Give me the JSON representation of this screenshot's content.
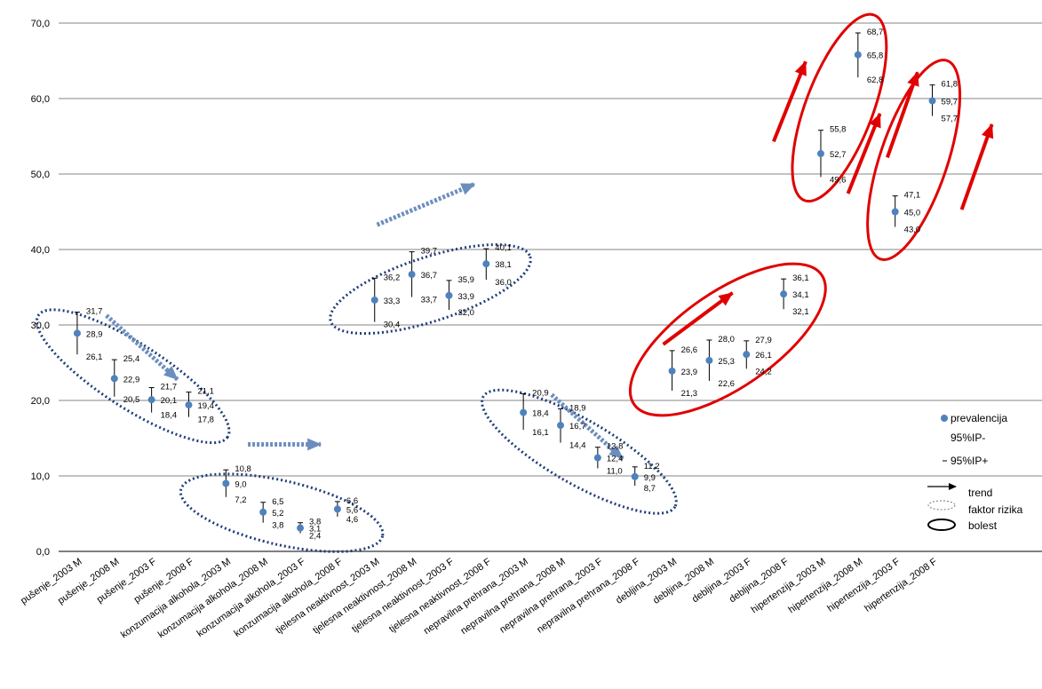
{
  "chart_data": {
    "type": "scatter",
    "title": "",
    "xlabel": "",
    "ylabel": "",
    "ylim": [
      0,
      70
    ],
    "yticks": [
      "0,0",
      "10,0",
      "20,0",
      "30,0",
      "40,0",
      "50,0",
      "60,0",
      "70,0"
    ],
    "grid": "horizontal",
    "legend_position": "right",
    "categories": [
      "pušenje_2003 M",
      "pušenje_2008 M",
      "pušenje_2003 F",
      "pušenje_2008 F",
      "konzumacija alkohola_2003 M",
      "konzumacija alkohola_2008 M",
      "konzumacija alkohola_2003 F",
      "konzumacija alkohola_2008 F",
      "tjelesna neaktivnost_2003 M",
      "tjelesna neaktivnost_2008 M",
      "tjelesna neaktivnost_2003 F",
      "tjelesna neaktivnost_2008 F",
      "nepravilna prehrana_2003 M",
      "nepravilna prehrana_2008 M",
      "nepravilna prehrana_2003 F",
      "nepravilna prehrana_2008 F",
      "debljina_2003 M",
      "debljina_2008 M",
      "debljina_2003 F",
      "debljina_2008 F",
      "hipertenzija_2003 M",
      "hipertenzija_2008 M",
      "hipertenzija_2003 F",
      "hipertenzija_2008 F"
    ],
    "series": [
      {
        "name": "prevalencija",
        "values": [
          28.9,
          22.9,
          20.1,
          19.4,
          9.0,
          5.2,
          3.1,
          5.6,
          33.3,
          36.7,
          33.9,
          38.1,
          18.4,
          16.7,
          12.4,
          9.9,
          23.9,
          25.3,
          26.1,
          34.1,
          52.7,
          65.8,
          45.0,
          59.7
        ],
        "labels": [
          "28,9",
          "22,9",
          "20,1",
          "19,4",
          "9,0",
          "5,2",
          "3,1",
          "5,6",
          "33,3",
          "36,7",
          "33,9",
          "38,1",
          "18,4",
          "16,7",
          "12,4",
          "9,9",
          "23,9",
          "25,3",
          "26,1",
          "34,1",
          "52,7",
          "65,8",
          "45,0",
          "59,7"
        ]
      },
      {
        "name": "95%IP-",
        "values": [
          26.1,
          20.5,
          18.4,
          17.8,
          7.2,
          3.8,
          2.4,
          4.6,
          30.4,
          33.7,
          32.0,
          36.0,
          16.1,
          14.4,
          11.0,
          8.7,
          21.3,
          22.6,
          24.2,
          32.1,
          49.6,
          62.8,
          43.0,
          57.7
        ],
        "labels": [
          "26,1",
          "20,5",
          "18,4",
          "17,8",
          "7,2",
          "3,8",
          "2,4",
          "4,6",
          "30,4",
          "33,7",
          "32,0",
          "36,0",
          "16,1",
          "14,4",
          "11,0",
          "8,7",
          "21,3",
          "22,6",
          "24,2",
          "32,1",
          "49,6",
          "62,8",
          "43,0",
          "57,7"
        ]
      },
      {
        "name": "95%IP+",
        "values": [
          31.7,
          25.4,
          21.7,
          21.1,
          10.8,
          6.5,
          3.8,
          6.6,
          36.2,
          39.7,
          35.9,
          40.1,
          20.9,
          18.9,
          13.8,
          11.2,
          26.6,
          28.0,
          27.9,
          36.1,
          55.8,
          68.7,
          47.1,
          61.8
        ],
        "labels": [
          "31,7",
          "25,4",
          "21,7",
          "21,1",
          "10,8",
          "6,5",
          "3,8",
          "6,6",
          "36,2",
          "39,7",
          "35,9",
          "40,1",
          "20,9",
          "18,9",
          "13,8",
          "11,2",
          "26,6",
          "28,0",
          "27,9",
          "36,1",
          "55,8",
          "68,7",
          "47,1",
          "61,8"
        ]
      }
    ],
    "groups": [
      {
        "name": "pušenje",
        "kind": "faktor rizika",
        "trend": "down"
      },
      {
        "name": "konzumacija alkohola",
        "kind": "faktor rizika",
        "trend": "flat"
      },
      {
        "name": "tjelesna neaktivnost",
        "kind": "faktor rizika",
        "trend": "up"
      },
      {
        "name": "nepravilna prehrana",
        "kind": "faktor rizika",
        "trend": "down"
      },
      {
        "name": "debljina",
        "kind": "bolest",
        "trend": "up"
      },
      {
        "name": "hipertenzija",
        "kind": "bolest",
        "trend": "up"
      }
    ],
    "legend": {
      "items": [
        "prevalencija",
        "95%IP-",
        "95%IP+",
        "trend",
        "faktor rizika",
        "bolest"
      ]
    },
    "colors": {
      "marker": "#4f81bd",
      "errorbar": "#000000",
      "risk_factor": "#1f3d7a",
      "risk_arrow": "#6c8ebf",
      "disease": "#e00000",
      "grid": "#868686"
    }
  }
}
